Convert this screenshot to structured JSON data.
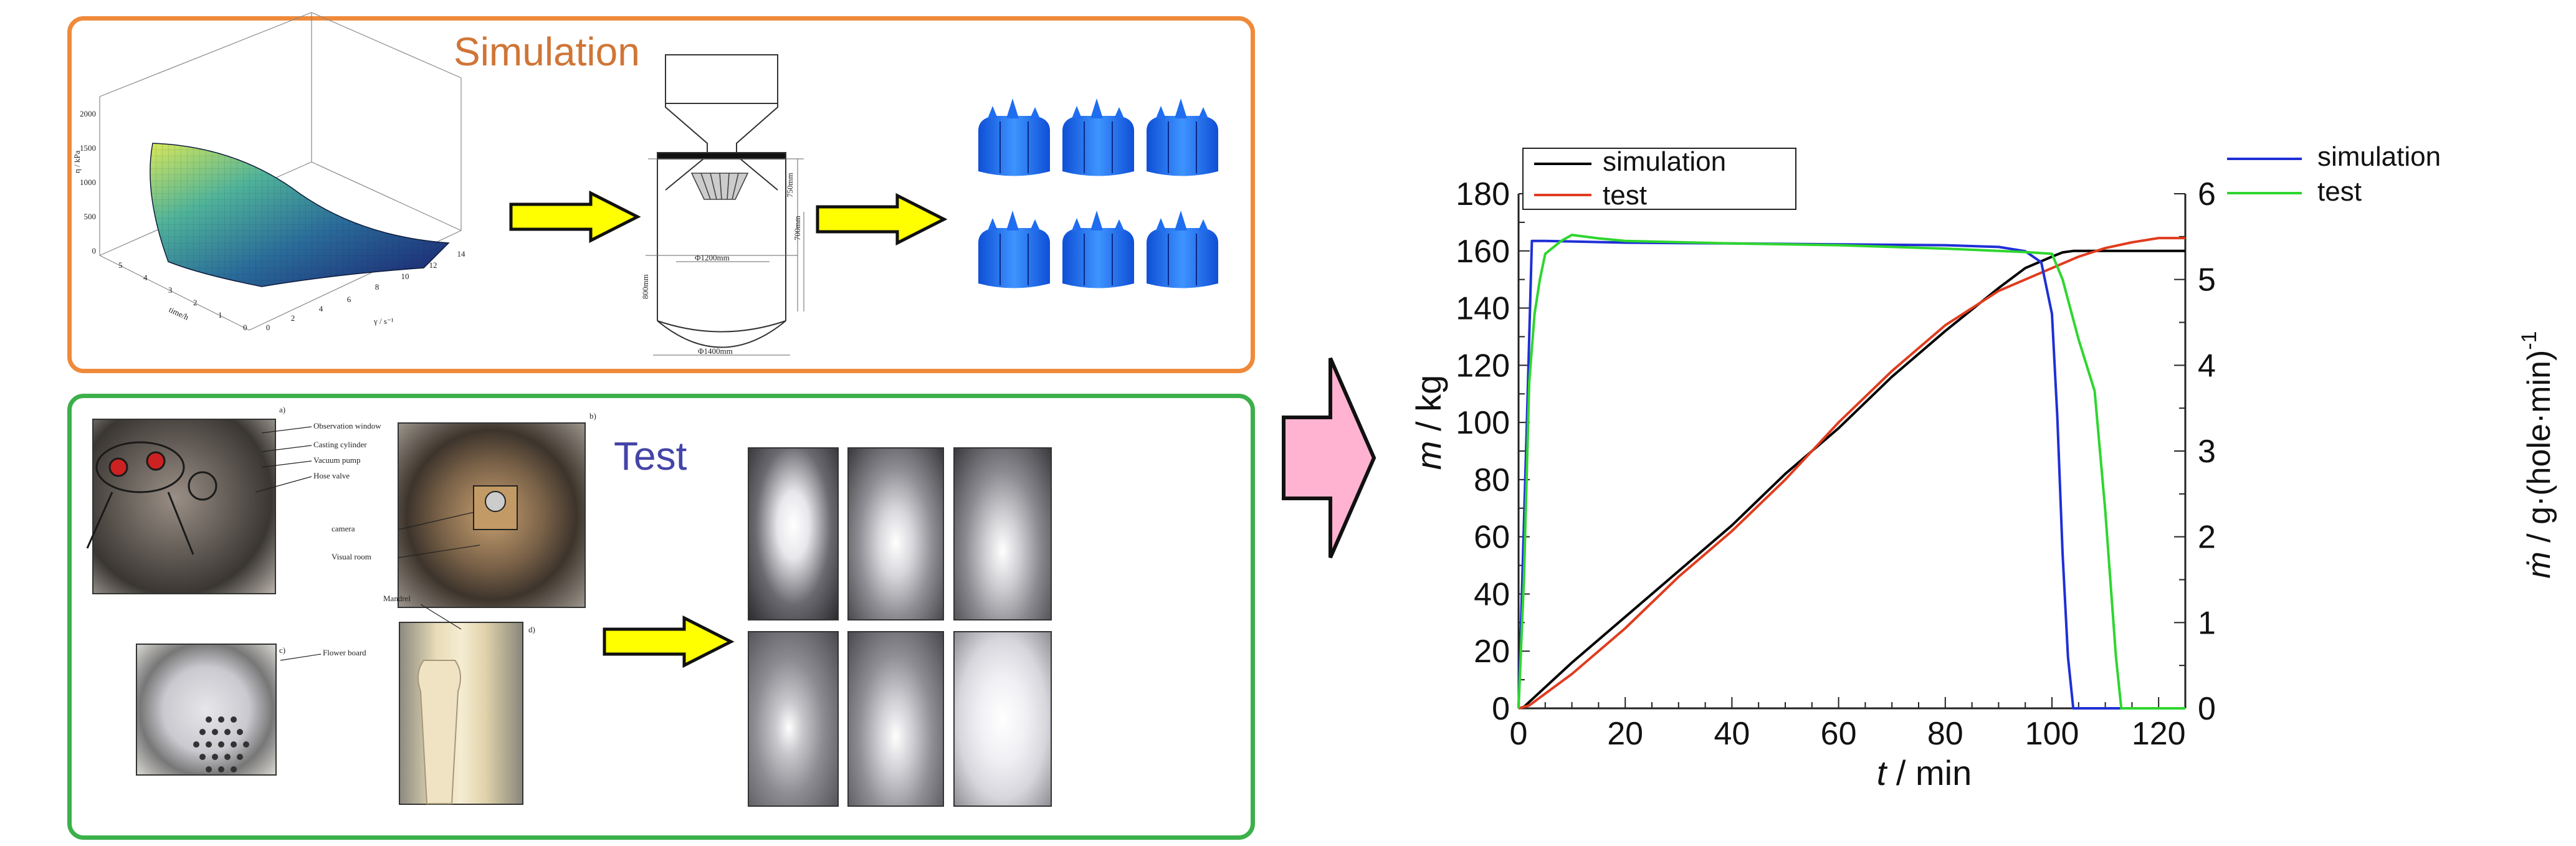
{
  "simulation": {
    "title": "Simulation",
    "surface_axes": {
      "z_label": "η / kPa",
      "x_label": "γ / s⁻¹",
      "y_label": "time/h",
      "z_ticks": [
        "2000",
        "1500",
        "1000",
        "500",
        "0"
      ],
      "x_ticks": [
        "0",
        "2",
        "4",
        "6",
        "8",
        "10",
        "12",
        "14"
      ],
      "y_ticks": [
        "0",
        "1",
        "2",
        "3",
        "4",
        "5"
      ]
    },
    "drawing_dims": [
      "Φ1200mm",
      "Φ1400mm",
      "800mm",
      "750mm",
      "700mm"
    ]
  },
  "test": {
    "title": "Test",
    "rig_labels": {
      "a": "a)",
      "b": "b)",
      "c": "c)",
      "d": "d)",
      "observation_window": "Observation window",
      "casting_cylinder": "Casting cylinder",
      "vacuum_pump": "Vacuum pump",
      "hose_valve": "Hose valve",
      "camera": "camera",
      "visual_room": "Visual room",
      "mandrel": "Mandrel",
      "flower_board": "Flower board"
    }
  },
  "colors": {
    "simulation_border": "#ef8a3a",
    "test_border": "#3cb04a",
    "arrow_yellow": "#ffff00",
    "arrow_pink": "#ffb3d1",
    "mass_simulation": "#000000",
    "mass_test": "#e03c1e",
    "rate_simulation": "#1f2fd6",
    "rate_test": "#2ed62e"
  },
  "chart_data": {
    "type": "line",
    "title": "",
    "xlabel_var": "t",
    "xlabel_unit": " / min",
    "ylabel_var": "m",
    "ylabel_unit": " / kg",
    "y2label_var": "ṁ",
    "y2label_unit": " / g·(hole·min)",
    "y2label_exp": "-1",
    "xlim": [
      0,
      125
    ],
    "ylim": [
      0,
      180
    ],
    "y2lim": [
      0,
      6
    ],
    "x_ticks": [
      0,
      20,
      40,
      60,
      80,
      100,
      120
    ],
    "y_ticks": [
      0,
      20,
      40,
      60,
      80,
      100,
      120,
      140,
      160,
      180
    ],
    "y2_ticks": [
      0,
      1,
      2,
      3,
      4,
      5,
      6
    ],
    "legend_left": [
      "simulation",
      "test"
    ],
    "legend_right": [
      "simulation",
      "test"
    ],
    "grid": false,
    "series": [
      {
        "name": "simulation",
        "axis": "left",
        "color": "#000000",
        "x": [
          0,
          1,
          10,
          20,
          30,
          40,
          50,
          60,
          70,
          80,
          90,
          95,
          100,
          102,
          104,
          106,
          125
        ],
        "y": [
          0,
          0.5,
          16,
          32,
          48,
          64,
          82,
          98,
          116,
          132,
          147,
          154,
          158,
          159.5,
          160,
          160,
          160
        ]
      },
      {
        "name": "test",
        "axis": "left",
        "color": "#e03c1e",
        "x": [
          0,
          2,
          10,
          20,
          30,
          40,
          50,
          60,
          70,
          80,
          90,
          100,
          105,
          110,
          115,
          120,
          125
        ],
        "y": [
          0,
          1,
          12,
          28,
          46,
          62,
          80,
          100,
          118,
          134,
          146,
          154,
          158,
          161,
          163,
          164.5,
          164.5
        ]
      },
      {
        "name": "simulation",
        "axis": "right",
        "color": "#1f2fd6",
        "x": [
          0,
          1.5,
          2.5,
          5,
          20,
          40,
          60,
          80,
          90,
          95,
          98,
          100,
          101,
          102,
          103,
          104,
          125
        ],
        "y": [
          0,
          3.2,
          5.45,
          5.45,
          5.43,
          5.42,
          5.41,
          5.4,
          5.38,
          5.33,
          5.2,
          4.6,
          3.4,
          1.8,
          0.6,
          0,
          0
        ]
      },
      {
        "name": "test",
        "axis": "right",
        "color": "#2ed62e",
        "x": [
          0,
          1,
          2,
          3,
          4,
          5,
          8,
          10,
          15,
          20,
          40,
          60,
          80,
          95,
          100,
          102,
          105,
          108,
          110,
          112,
          113,
          125
        ],
        "y": [
          0,
          1.5,
          3.8,
          4.6,
          5.0,
          5.3,
          5.45,
          5.52,
          5.48,
          5.45,
          5.42,
          5.4,
          5.36,
          5.32,
          5.3,
          5.0,
          4.3,
          3.7,
          2.3,
          0.6,
          0,
          0
        ]
      }
    ]
  }
}
